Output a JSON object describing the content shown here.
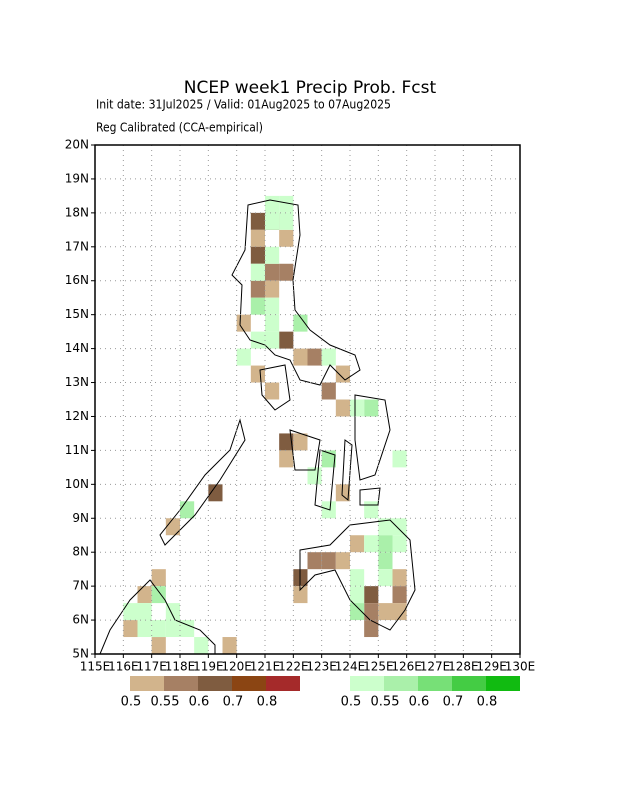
{
  "chart_data": {
    "type": "gridmap",
    "title": "NCEP week1 Precip Prob. Fcst",
    "subtitle": "Init date: 31Jul2025 / Valid: 01Aug2025 to 07Aug2025",
    "note": "Reg Calibrated (CCA-empirical)",
    "xlim": [
      115,
      130
    ],
    "ylim": [
      5,
      20
    ],
    "cell_size": 0.5,
    "grid": true,
    "xticks": [
      {
        "value": 115,
        "label": "115E"
      },
      {
        "value": 116,
        "label": "116E"
      },
      {
        "value": 117,
        "label": "117E"
      },
      {
        "value": 118,
        "label": "118E"
      },
      {
        "value": 119,
        "label": "119E"
      },
      {
        "value": 120,
        "label": "120E"
      },
      {
        "value": 121,
        "label": "121E"
      },
      {
        "value": 122,
        "label": "122E"
      },
      {
        "value": 123,
        "label": "123E"
      },
      {
        "value": 124,
        "label": "124E"
      },
      {
        "value": 125,
        "label": "125E"
      },
      {
        "value": 126,
        "label": "126E"
      },
      {
        "value": 127,
        "label": "127E"
      },
      {
        "value": 128,
        "label": "128E"
      },
      {
        "value": 129,
        "label": "129E"
      },
      {
        "value": 130,
        "label": "130E"
      }
    ],
    "yticks": [
      {
        "value": 5,
        "label": "5N"
      },
      {
        "value": 6,
        "label": "6N"
      },
      {
        "value": 7,
        "label": "7N"
      },
      {
        "value": 8,
        "label": "8N"
      },
      {
        "value": 9,
        "label": "9N"
      },
      {
        "value": 10,
        "label": "10N"
      },
      {
        "value": 11,
        "label": "11N"
      },
      {
        "value": 12,
        "label": "12N"
      },
      {
        "value": 13,
        "label": "13N"
      },
      {
        "value": 14,
        "label": "14N"
      },
      {
        "value": 15,
        "label": "15N"
      },
      {
        "value": 16,
        "label": "16N"
      },
      {
        "value": 17,
        "label": "17N"
      },
      {
        "value": 18,
        "label": "18N"
      },
      {
        "value": 19,
        "label": "19N"
      },
      {
        "value": 20,
        "label": "20N"
      }
    ],
    "series": [
      {
        "colors": [
          "#d2b48c",
          "#a68064",
          "#7f5c40",
          "#8b4513",
          "#a52a2a"
        ],
        "bins": [
          0.5,
          0.55,
          0.6,
          0.7,
          0.8
        ],
        "lon": [
          120.5,
          121,
          120.5,
          121.5,
          120.5,
          121,
          121.5,
          120.5,
          121,
          120,
          121.5,
          122,
          120.5,
          121,
          122.5,
          123.5,
          123,
          123.5,
          121.5,
          121.5,
          122,
          123.5,
          122.5,
          122,
          122,
          123,
          123.5,
          124,
          124.5,
          124.5,
          125,
          124.5,
          125.5,
          125.5,
          125.5,
          117.5,
          119,
          116.5,
          117,
          116,
          117,
          119.5
        ],
        "lat": [
          17.5,
          17.5,
          17,
          17,
          16.5,
          16,
          16,
          15.5,
          15.5,
          14.5,
          14,
          13.5,
          13,
          12.5,
          13.5,
          13,
          12.5,
          12,
          11,
          10.5,
          11,
          9.5,
          7.5,
          7,
          6.5,
          7.5,
          7.5,
          8,
          6.5,
          6,
          6,
          5.5,
          7,
          6.5,
          6,
          8.5,
          9.5,
          6.5,
          7,
          5.5,
          5,
          5
        ],
        "prob": [
          0.6,
          0.6,
          0.5,
          0.5,
          0.6,
          0.55,
          0.55,
          0.55,
          0.5,
          0.5,
          0.6,
          0.5,
          0.5,
          0.5,
          0.55,
          0.5,
          0.55,
          0.5,
          0.6,
          0.5,
          0.5,
          0.5,
          0.55,
          0.6,
          0.5,
          0.55,
          0.5,
          0.5,
          0.6,
          0.55,
          0.5,
          0.55,
          0.5,
          0.55,
          0.5,
          0.5,
          0.6,
          0.5,
          0.5,
          0.5,
          0.5,
          0.5
        ]
      },
      {
        "colors": [
          "#ccffcc",
          "#aaf0aa",
          "#77e077",
          "#44cc44",
          "#11bb11"
        ],
        "bins": [
          0.5,
          0.55,
          0.6,
          0.7,
          0.8
        ],
        "lon": [
          121,
          121.5,
          121,
          121.5,
          120.5,
          121,
          121,
          120.5,
          121,
          122,
          120.5,
          120,
          121,
          123,
          124.5,
          124,
          123,
          122.5,
          123,
          118,
          124.5,
          125,
          124.5,
          125,
          125.5,
          124,
          124,
          124,
          125,
          125,
          116.5,
          117,
          117.5,
          116,
          117.5,
          118,
          116.5,
          117,
          118.5,
          125.5,
          125.5
        ],
        "lat": [
          18,
          18,
          17.5,
          17.5,
          16,
          16.5,
          15,
          15,
          14.5,
          14.5,
          14,
          13.5,
          14,
          13.5,
          12,
          12,
          10.5,
          10,
          9,
          9,
          9,
          8.5,
          8,
          8,
          8,
          7,
          6.5,
          6,
          7.5,
          7,
          6,
          6.5,
          6,
          6,
          5.5,
          5.5,
          5.5,
          5.5,
          5,
          8.5,
          10.5
        ],
        "prob": [
          0.5,
          0.5,
          0.5,
          0.5,
          0.5,
          0.5,
          0.5,
          0.55,
          0.5,
          0.55,
          0.5,
          0.5,
          0.5,
          0.5,
          0.55,
          0.5,
          0.55,
          0.5,
          0.5,
          0.55,
          0.5,
          0.5,
          0.5,
          0.55,
          0.5,
          0.5,
          0.5,
          0.55,
          0.55,
          0.5,
          0.5,
          0.55,
          0.5,
          0.5,
          0.5,
          0.5,
          0.5,
          0.5,
          0.5,
          0.5,
          0.5
        ]
      }
    ]
  }
}
